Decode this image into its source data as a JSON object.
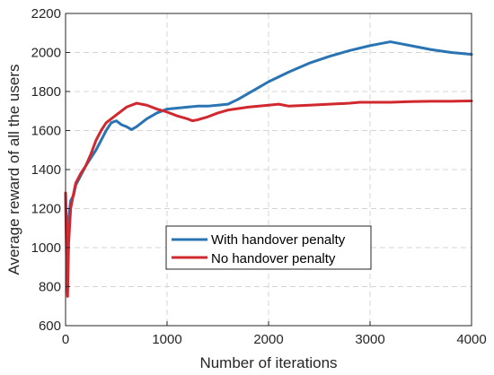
{
  "chart_data": {
    "type": "line",
    "title": "",
    "xlabel": "Number of iterations",
    "ylabel": "Average reward of all the users",
    "xlim": [
      0,
      4000
    ],
    "ylim": [
      600,
      2200
    ],
    "xticks": [
      "0",
      "1000",
      "2000",
      "3000",
      "4000"
    ],
    "yticks": [
      "600",
      "800",
      "1000",
      "1200",
      "1400",
      "1600",
      "1800",
      "2000",
      "2200"
    ],
    "grid": true,
    "legend_position": "lower-center",
    "series": [
      {
        "name": "With handover penalty",
        "color": "#2a74b3",
        "points": [
          [
            0,
            1280
          ],
          [
            10,
            1050
          ],
          [
            20,
            930
          ],
          [
            30,
            1150
          ],
          [
            50,
            1240
          ],
          [
            80,
            1270
          ],
          [
            100,
            1320
          ],
          [
            150,
            1370
          ],
          [
            200,
            1420
          ],
          [
            250,
            1460
          ],
          [
            300,
            1500
          ],
          [
            350,
            1550
          ],
          [
            400,
            1600
          ],
          [
            450,
            1640
          ],
          [
            500,
            1650
          ],
          [
            550,
            1630
          ],
          [
            600,
            1620
          ],
          [
            650,
            1605
          ],
          [
            700,
            1620
          ],
          [
            800,
            1660
          ],
          [
            900,
            1690
          ],
          [
            1000,
            1710
          ],
          [
            1100,
            1715
          ],
          [
            1200,
            1720
          ],
          [
            1300,
            1725
          ],
          [
            1400,
            1725
          ],
          [
            1500,
            1730
          ],
          [
            1600,
            1735
          ],
          [
            1700,
            1760
          ],
          [
            1800,
            1790
          ],
          [
            1900,
            1820
          ],
          [
            2000,
            1850
          ],
          [
            2200,
            1900
          ],
          [
            2400,
            1945
          ],
          [
            2600,
            1980
          ],
          [
            2800,
            2010
          ],
          [
            3000,
            2035
          ],
          [
            3100,
            2045
          ],
          [
            3200,
            2055
          ],
          [
            3300,
            2045
          ],
          [
            3400,
            2035
          ],
          [
            3600,
            2015
          ],
          [
            3800,
            2000
          ],
          [
            4000,
            1990
          ]
        ]
      },
      {
        "name": "No handover penalty",
        "color": "#d0282e",
        "points": [
          [
            0,
            1280
          ],
          [
            10,
            900
          ],
          [
            20,
            750
          ],
          [
            30,
            1020
          ],
          [
            50,
            1200
          ],
          [
            80,
            1280
          ],
          [
            100,
            1330
          ],
          [
            150,
            1380
          ],
          [
            200,
            1420
          ],
          [
            250,
            1480
          ],
          [
            300,
            1550
          ],
          [
            350,
            1600
          ],
          [
            400,
            1640
          ],
          [
            500,
            1680
          ],
          [
            600,
            1720
          ],
          [
            700,
            1740
          ],
          [
            800,
            1730
          ],
          [
            900,
            1710
          ],
          [
            1000,
            1695
          ],
          [
            1100,
            1675
          ],
          [
            1200,
            1660
          ],
          [
            1250,
            1650
          ],
          [
            1300,
            1655
          ],
          [
            1400,
            1670
          ],
          [
            1500,
            1690
          ],
          [
            1600,
            1705
          ],
          [
            1800,
            1720
          ],
          [
            2000,
            1730
          ],
          [
            2100,
            1735
          ],
          [
            2200,
            1725
          ],
          [
            2400,
            1730
          ],
          [
            2600,
            1735
          ],
          [
            2800,
            1740
          ],
          [
            2900,
            1745
          ],
          [
            3000,
            1745
          ],
          [
            3200,
            1745
          ],
          [
            3400,
            1748
          ],
          [
            3600,
            1750
          ],
          [
            3800,
            1750
          ],
          [
            4000,
            1752
          ]
        ]
      }
    ]
  }
}
